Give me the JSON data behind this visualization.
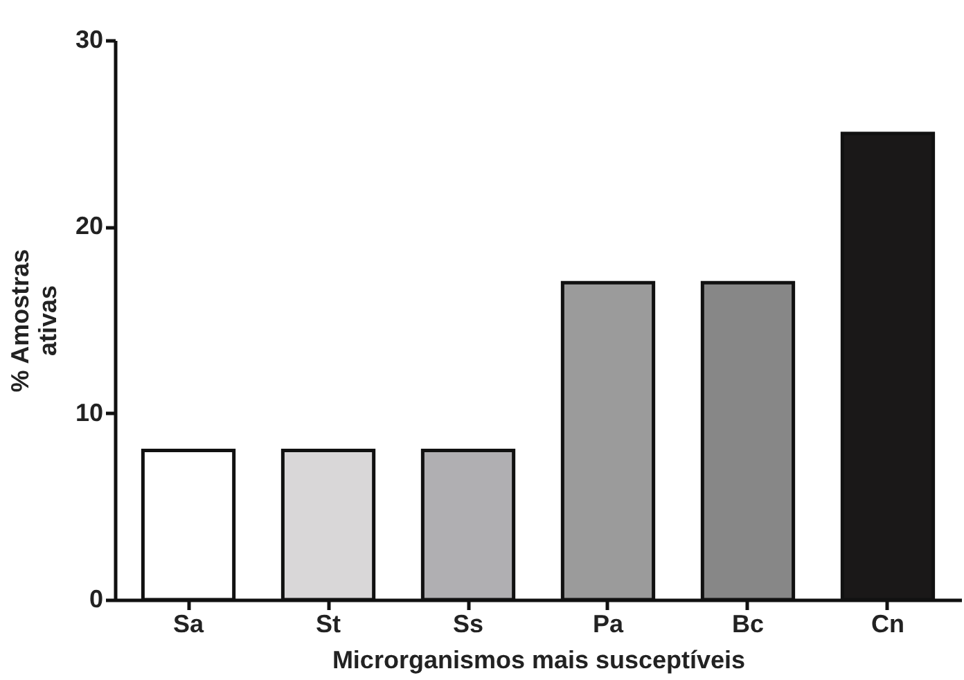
{
  "chart_data": {
    "type": "bar",
    "categories": [
      "Sa",
      "St",
      "Ss",
      "Pa",
      "Bc",
      "Cn"
    ],
    "values": [
      8,
      8,
      8,
      17,
      17,
      25
    ],
    "colors": [
      "#ffffff",
      "#d9d7d8",
      "#b0afb2",
      "#9b9b9b",
      "#878787",
      "#1a1818"
    ],
    "xlabel": "Microrganismos mais susceptíveis",
    "ylabel": "% Amostras\nativas",
    "ylim": [
      0,
      30
    ],
    "yticks": [
      0,
      10,
      20,
      30
    ],
    "grid": false
  }
}
